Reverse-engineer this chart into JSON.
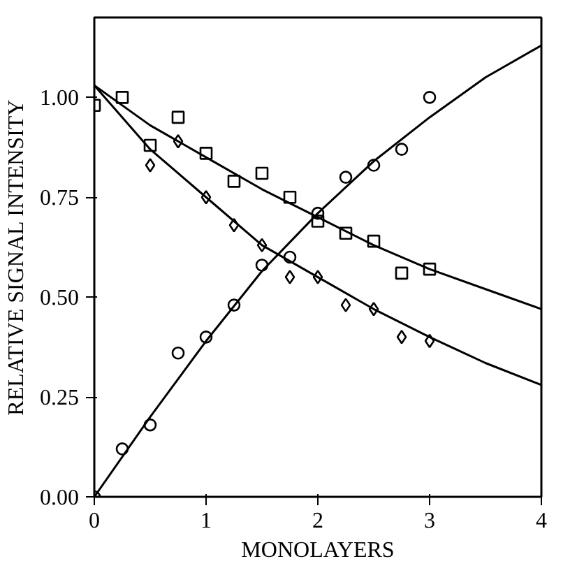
{
  "chart_data": {
    "type": "scatter",
    "xlabel": "MONOLAYERS",
    "ylabel": "RELATIVE SIGNAL INTENSITY",
    "xlim": [
      0,
      4
    ],
    "ylim": [
      0,
      1.2
    ],
    "xticks": [
      0,
      1,
      2,
      3,
      4
    ],
    "yticks": [
      {
        "value": 0,
        "label": "0.00"
      },
      {
        "value": 0.25,
        "label": "0.25"
      },
      {
        "value": 0.5,
        "label": "0.50"
      },
      {
        "value": 0.75,
        "label": "0.75"
      },
      {
        "value": 1,
        "label": "1.00"
      }
    ],
    "grid": false,
    "series": [
      {
        "marker": "square",
        "color": "#000000",
        "x": [
          0,
          0.25,
          0.5,
          0.75,
          1,
          1.25,
          1.5,
          1.75,
          2,
          2.25,
          2.5,
          2.75,
          3
        ],
        "values": [
          0.98,
          1.0,
          0.88,
          0.95,
          0.86,
          0.79,
          0.81,
          0.75,
          0.69,
          0.66,
          0.64,
          0.56,
          0.57
        ]
      },
      {
        "marker": "diamond",
        "color": "#000000",
        "x": [
          0.5,
          0.75,
          1,
          1.25,
          1.5,
          1.75,
          2,
          2.25,
          2.5,
          2.75,
          3
        ],
        "values": [
          0.83,
          0.89,
          0.75,
          0.68,
          0.63,
          0.55,
          0.55,
          0.48,
          0.47,
          0.4,
          0.39
        ]
      },
      {
        "marker": "circle",
        "color": "#000000",
        "x": [
          0,
          0.25,
          0.5,
          0.75,
          1,
          1.25,
          1.5,
          1.75,
          2,
          2.25,
          2.5,
          2.75,
          3
        ],
        "values": [
          0.0,
          0.12,
          0.18,
          0.36,
          0.4,
          0.48,
          0.58,
          0.6,
          0.71,
          0.8,
          0.83,
          0.87,
          1.0
        ]
      },
      {
        "type": "line",
        "marker": "none",
        "line_style": "solid",
        "color": "#000000",
        "x": [
          0,
          0.5,
          1,
          1.5,
          2,
          2.5,
          3,
          3.5,
          4
        ],
        "values": [
          1.03,
          0.93,
          0.85,
          0.77,
          0.7,
          0.63,
          0.57,
          0.52,
          0.47
        ]
      },
      {
        "type": "line",
        "marker": "none",
        "line_style": "solid",
        "color": "#000000",
        "x": [
          0,
          0.5,
          1,
          1.5,
          2,
          2.5,
          3,
          3.5,
          4
        ],
        "values": [
          1.03,
          0.87,
          0.75,
          0.63,
          0.55,
          0.47,
          0.4,
          0.335,
          0.28
        ]
      },
      {
        "type": "line",
        "marker": "none",
        "line_style": "solid",
        "color": "#000000",
        "x": [
          0,
          0.5,
          1,
          1.5,
          2,
          2.5,
          3,
          3.5,
          4
        ],
        "values": [
          0.0,
          0.2,
          0.39,
          0.565,
          0.71,
          0.84,
          0.95,
          1.05,
          1.13
        ]
      }
    ]
  }
}
